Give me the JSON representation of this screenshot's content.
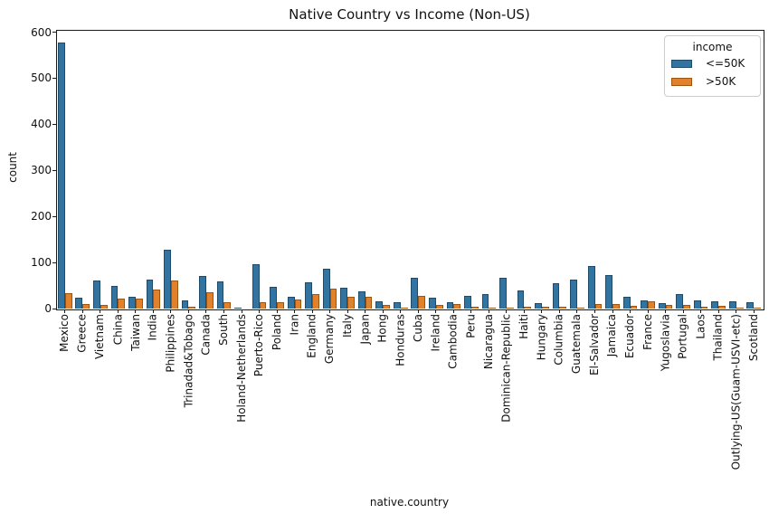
{
  "chart_data": {
    "type": "bar",
    "title": "Native Country vs Income (Non-US)",
    "xlabel": "native.country",
    "ylabel": "count",
    "ylim": [
      0,
      605
    ],
    "yticks": [
      0,
      100,
      200,
      300,
      400,
      500,
      600
    ],
    "grid": false,
    "background": "#ffffff",
    "legend": {
      "title": "income",
      "position": "upper right"
    },
    "categories": [
      "Mexico",
      "Greece",
      "Vietnam",
      "China",
      "Taiwan",
      "India",
      "Philippines",
      "Trinadad&Tobago",
      "Canada",
      "South",
      "Holand-Netherlands",
      "Puerto-Rico",
      "Poland",
      "Iran",
      "England",
      "Germany",
      "Italy",
      "Japan",
      "Hong",
      "Honduras",
      "Cuba",
      "Ireland",
      "Cambodia",
      "Peru",
      "Nicaragua",
      "Dominican-Republic",
      "Haiti",
      "Hungary",
      "Columbia",
      "Guatemala",
      "El-Salvador",
      "Jamaica",
      "Ecuador",
      "France",
      "Yugoslavia",
      "Portugal",
      "Laos",
      "Thailand",
      "Outlying-US(Guam-USVI-etc)",
      "Scotland"
    ],
    "series": [
      {
        "name": "<=50K",
        "color": "#3274a1",
        "edge_color": "#1f4a68",
        "values": [
          577,
          23,
          60,
          50,
          26,
          62,
          128,
          18,
          71,
          58,
          2,
          97,
          48,
          26,
          57,
          86,
          46,
          38,
          16,
          13,
          67,
          23,
          14,
          28,
          32,
          67,
          40,
          12,
          55,
          63,
          92,
          72,
          26,
          18,
          12,
          32,
          18,
          16,
          16,
          13
        ]
      },
      {
        "name": ">50K",
        "color": "#e1812c",
        "edge_color": "#9c5410",
        "values": [
          33,
          10,
          8,
          22,
          21,
          41,
          61,
          3,
          36,
          14,
          0,
          13,
          13,
          20,
          31,
          44,
          26,
          26,
          8,
          1,
          28,
          8,
          10,
          3,
          2,
          2,
          4,
          3,
          3,
          2,
          10,
          10,
          5,
          16,
          8,
          7,
          4,
          5,
          1,
          2
        ]
      }
    ]
  }
}
